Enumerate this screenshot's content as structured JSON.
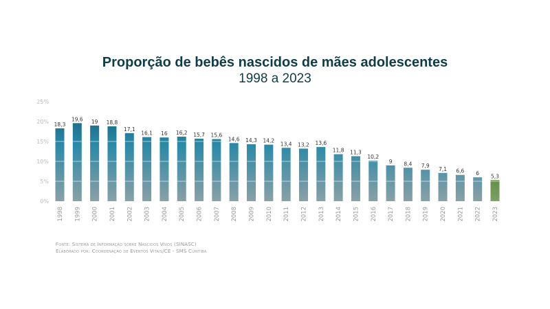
{
  "chart_data": {
    "type": "bar",
    "title": "Proporção de bebês nascidos de mães adolescentes",
    "subtitle": "1998 a 2023",
    "categories": [
      "1998",
      "1999",
      "2000",
      "2001",
      "2002",
      "2003",
      "2004",
      "2005",
      "2006",
      "2007",
      "2008",
      "2009",
      "2010",
      "2011",
      "2012",
      "2013",
      "2014",
      "2015",
      "2016",
      "2017",
      "2018",
      "2019",
      "2020",
      "2021",
      "2022",
      "2023"
    ],
    "values": [
      18.3,
      19.6,
      19,
      18.8,
      17.1,
      16.1,
      16,
      16.2,
      15.7,
      15.6,
      14.6,
      14.3,
      14.2,
      13.4,
      13.2,
      13.6,
      11.8,
      11.3,
      10.2,
      9,
      8.4,
      7.9,
      7.1,
      6.6,
      6,
      5.3
    ],
    "data_labels": [
      "18,3",
      "19,6",
      "19",
      "18,8",
      "17,1",
      "16,1",
      "16",
      "16,2",
      "15,7",
      "15,6",
      "14,6",
      "14,3",
      "14,2",
      "13,4",
      "13,2",
      "13,6",
      "11,8",
      "11,3",
      "10,2",
      "9",
      "8,4",
      "7,9",
      "7,1",
      "6,6",
      "6",
      "5,3"
    ],
    "yticks": [
      "0%",
      "5%",
      "10%",
      "15%",
      "20%",
      "25%"
    ],
    "ylim": [
      0,
      25
    ],
    "xlabel": "",
    "ylabel": "",
    "grid": true,
    "colors": {
      "bar_top": "#1a6f8c",
      "bar_mid": "#2a8aa8",
      "bar_bottom": "#8aa0a6",
      "highlight_top": "#5e8f3e",
      "highlight_bottom": "#7fa068",
      "title": "#0e3d4a"
    }
  },
  "notes": {
    "source": "Fonte: Sistema de Informação sobre Nascidos Vivos (SINASC)",
    "author": "Elaborado por: Coordenação de Eventos Vitais/CE - SMS Curitiba"
  }
}
